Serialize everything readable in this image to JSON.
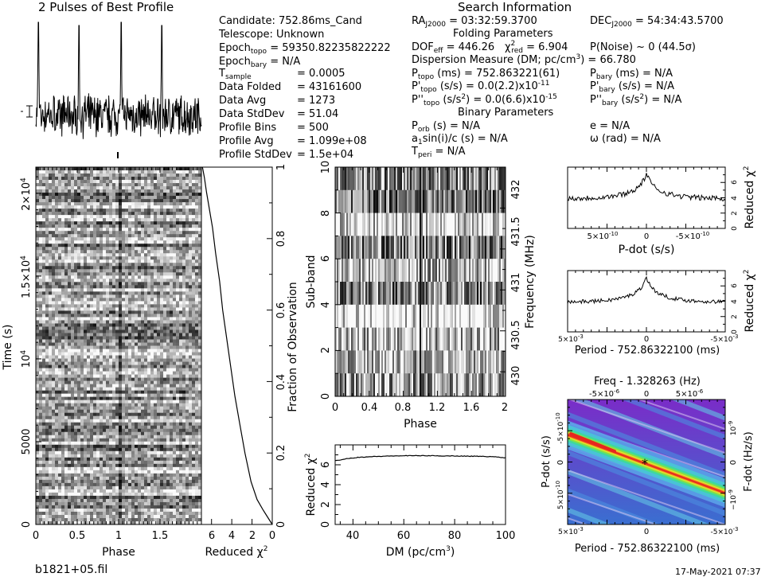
{
  "header": {
    "profile_title": "2 Pulses of Best Profile",
    "search_title": "Search Information",
    "filename": "b1821+05.fil",
    "date": "17-May-2021 07:37"
  },
  "info": {
    "candidate": "Candidate:  752.86ms_Cand",
    "telescope": "Telescope:  Unknown",
    "epoch_topo": "Epoch",
    "epoch_topo_sub": "topo",
    "epoch_topo_val": " = 59350.82235822222",
    "epoch_bary": "Epoch",
    "epoch_bary_sub": "bary",
    "epoch_bary_val": " = N/A",
    "t_sample": "T",
    "t_sample_sub": "sample",
    "t_sample_val": "= 0.0005",
    "data_folded": "Data Folded",
    "data_folded_val": "= 43161600",
    "data_avg": "Data Avg",
    "data_avg_val": "= 1273",
    "data_std": "Data StdDev",
    "data_std_val": "= 51.04",
    "prof_bins": "Profile Bins",
    "prof_bins_val": "= 500",
    "prof_avg": "Profile Avg",
    "prof_avg_val": "= 1.099e+08",
    "prof_std": "Profile StdDev",
    "prof_std_val": "= 1.5e+04"
  },
  "search": {
    "ra": "RA",
    "ra_sub": "J2000",
    "ra_val": " = 03:32:59.3700",
    "dec": "DEC",
    "dec_sub": "J2000",
    "dec_val": " = 54:34:43.5700",
    "folding_params": "Folding Parameters",
    "dof": "DOF",
    "dof_sub": "eff",
    "dof_val": " = 446.26",
    "chi": "χ",
    "chi_sup": "2",
    "chi_sub": "red",
    "chi_val": " = 6.904",
    "pnoise": "P(Noise) ~ 0     (44.5σ)",
    "dm": "Dispersion Measure (DM; pc/cm",
    "dm_sup": "3",
    "dm_val": ") = 66.780",
    "ptopo": "P",
    "ptopo_sub": "topo",
    "ptopo_val": " (ms)  =  752.863221(61)",
    "pbary": "P",
    "pbary_sub": "bary",
    "pbary_val": " (ms) = N/A",
    "pdtopo": "P'",
    "pdtopo_sub": "topo",
    "pdtopo_val": " (s/s) = 0.0(2.2)x10",
    "pdtopo_exp": "-11",
    "pdbary": "P'",
    "pdbary_sub": "bary",
    "pdbary_val": " (s/s) = N/A",
    "pddtopo": "P''",
    "pddtopo_sub": "topo",
    "pddtopo_val": " (s/s",
    "pddtopo_sup2": "2",
    "pddtopo_val2": ") = 0.0(6.6)x10",
    "pddtopo_exp": "-15",
    "pddbary": "P''",
    "pddbary_sub": "bary",
    "pddbary_val": " (s/s",
    "pddbary_sup2": "2",
    "pddbary_val2": ") = N/A",
    "binary_params": "Binary Parameters",
    "porb": "P",
    "porb_sub": "orb",
    "porb_val": " (s) = N/A",
    "ecc": "e = N/A",
    "a1": "a",
    "a1_sub": "1",
    "a1_val": "sin(i)/c (s) = N/A",
    "omega": "ω (rad) = N/A",
    "tperi": "T",
    "tperi_sub": "peri",
    "tperi_val": " = N/A"
  },
  "chart_data": [
    {
      "type": "line",
      "title": "2 Pulses of Best Profile",
      "phase_range": [
        0,
        2
      ],
      "pulse_peak_phase": [
        0.03,
        0.54
      ],
      "pulse_main_phase": 0.5
    },
    {
      "type": "heatmap",
      "xlabel": "Phase",
      "ylabel": "Time (s)",
      "xticks": [
        "0",
        "0.5",
        "1",
        "1.5"
      ],
      "yticks": [
        "0",
        "5000",
        "10",
        "4",
        "1.5×10",
        "4",
        "2×10",
        "4"
      ],
      "xlim": [
        0,
        2
      ],
      "ylim": [
        0,
        21580
      ],
      "colormap": "grayscale"
    },
    {
      "type": "line",
      "xlabel": "Reduced χ",
      "xlabel_sup": "2",
      "ylabel": "Fraction of Observation",
      "xticks": [
        "6",
        "4",
        "2",
        "0"
      ],
      "yticks": [
        "0",
        "0.2",
        "0.4",
        "0.6",
        "0.8",
        "1"
      ],
      "xlim": [
        7,
        0
      ],
      "ylim": [
        0,
        1
      ],
      "x": [
        0,
        0.45,
        0.9,
        1.5,
        2.1,
        2.7,
        3.2,
        3.7,
        4.1,
        4.5,
        4.9,
        5.2,
        5.6,
        5.9,
        6.2,
        6.5,
        6.7,
        6.9
      ],
      "y": [
        0,
        0.02,
        0.04,
        0.07,
        0.12,
        0.2,
        0.28,
        0.36,
        0.44,
        0.52,
        0.6,
        0.68,
        0.76,
        0.83,
        0.88,
        0.93,
        0.97,
        1.0
      ]
    },
    {
      "type": "heatmap",
      "xlabel": "Phase",
      "ylabel": "Sub-band",
      "y2label": "Frequency (MHz)",
      "xticks": [
        "0",
        "0.4",
        "0.8",
        "1.2",
        "1.6",
        "2"
      ],
      "yticks": [
        "0",
        "2",
        "4",
        "6",
        "8",
        "10"
      ],
      "y2ticks": [
        "430",
        "430.5",
        "431",
        "431.5",
        "432"
      ],
      "xlim": [
        0,
        2
      ],
      "ylim": [
        0,
        10
      ],
      "y2lim": [
        429.7,
        432.5
      ],
      "colormap": "grayscale"
    },
    {
      "type": "line",
      "xlabel": "DM (pc/cm",
      "xlabel_sup": "3",
      "xlabel_end": ")",
      "ylabel": "Reduced χ",
      "ylabel_sup": "2",
      "xticks": [
        "40",
        "60",
        "80",
        "100"
      ],
      "yticks": [
        "0",
        "2",
        "4",
        "6"
      ],
      "xlim": [
        33,
        100
      ],
      "ylim": [
        0,
        8
      ],
      "x": [
        33,
        37,
        42,
        50,
        58,
        66,
        74,
        82,
        90,
        96,
        100
      ],
      "y": [
        6.4,
        6.6,
        6.75,
        6.85,
        6.9,
        6.92,
        6.9,
        6.88,
        6.85,
        6.8,
        6.7
      ]
    },
    {
      "type": "line",
      "xlabel": "P-dot (s/s)",
      "ylabel": "Reduced χ",
      "ylabel_sup": "2",
      "xticks": [
        "5×10",
        "0",
        "-5×10"
      ],
      "xtick_exp": "-10",
      "yticks": [
        "0",
        "2",
        "4",
        "6"
      ],
      "ylim": [
        0,
        8
      ],
      "peak": 7.0
    },
    {
      "type": "line",
      "xlabel": "Period - 752.86322100 (ms)",
      "ylabel": "Reduced χ",
      "ylabel_sup": "2",
      "xticks": [
        "5×10",
        "0",
        "-5×10"
      ],
      "xtick_exp": "-3",
      "yticks": [
        "0",
        "2",
        "4",
        "6"
      ],
      "ylim": [
        0,
        8
      ],
      "peak": 7.0
    },
    {
      "type": "heatmap",
      "title": "Freq - 1.328263 (Hz)",
      "xlabel": "Period - 752.86322100 (ms)",
      "ylabel": "P-dot (s/s)",
      "y2label": "F-dot (Hz/s)",
      "xticks": [
        "5×10",
        "0",
        "-5×10"
      ],
      "xtick_exp": "-3",
      "x2ticks": [
        "-5×10",
        "0",
        "5×10"
      ],
      "x2tick_exp": "-6",
      "yticks": [
        "5×10",
        "0",
        "-5×10"
      ],
      "ytick_exp": "-10",
      "y2ticks": [
        "-10",
        "0",
        "10"
      ],
      "y2tick_exp": "-9",
      "colormap": "rainbow",
      "best_marker": "*"
    }
  ]
}
